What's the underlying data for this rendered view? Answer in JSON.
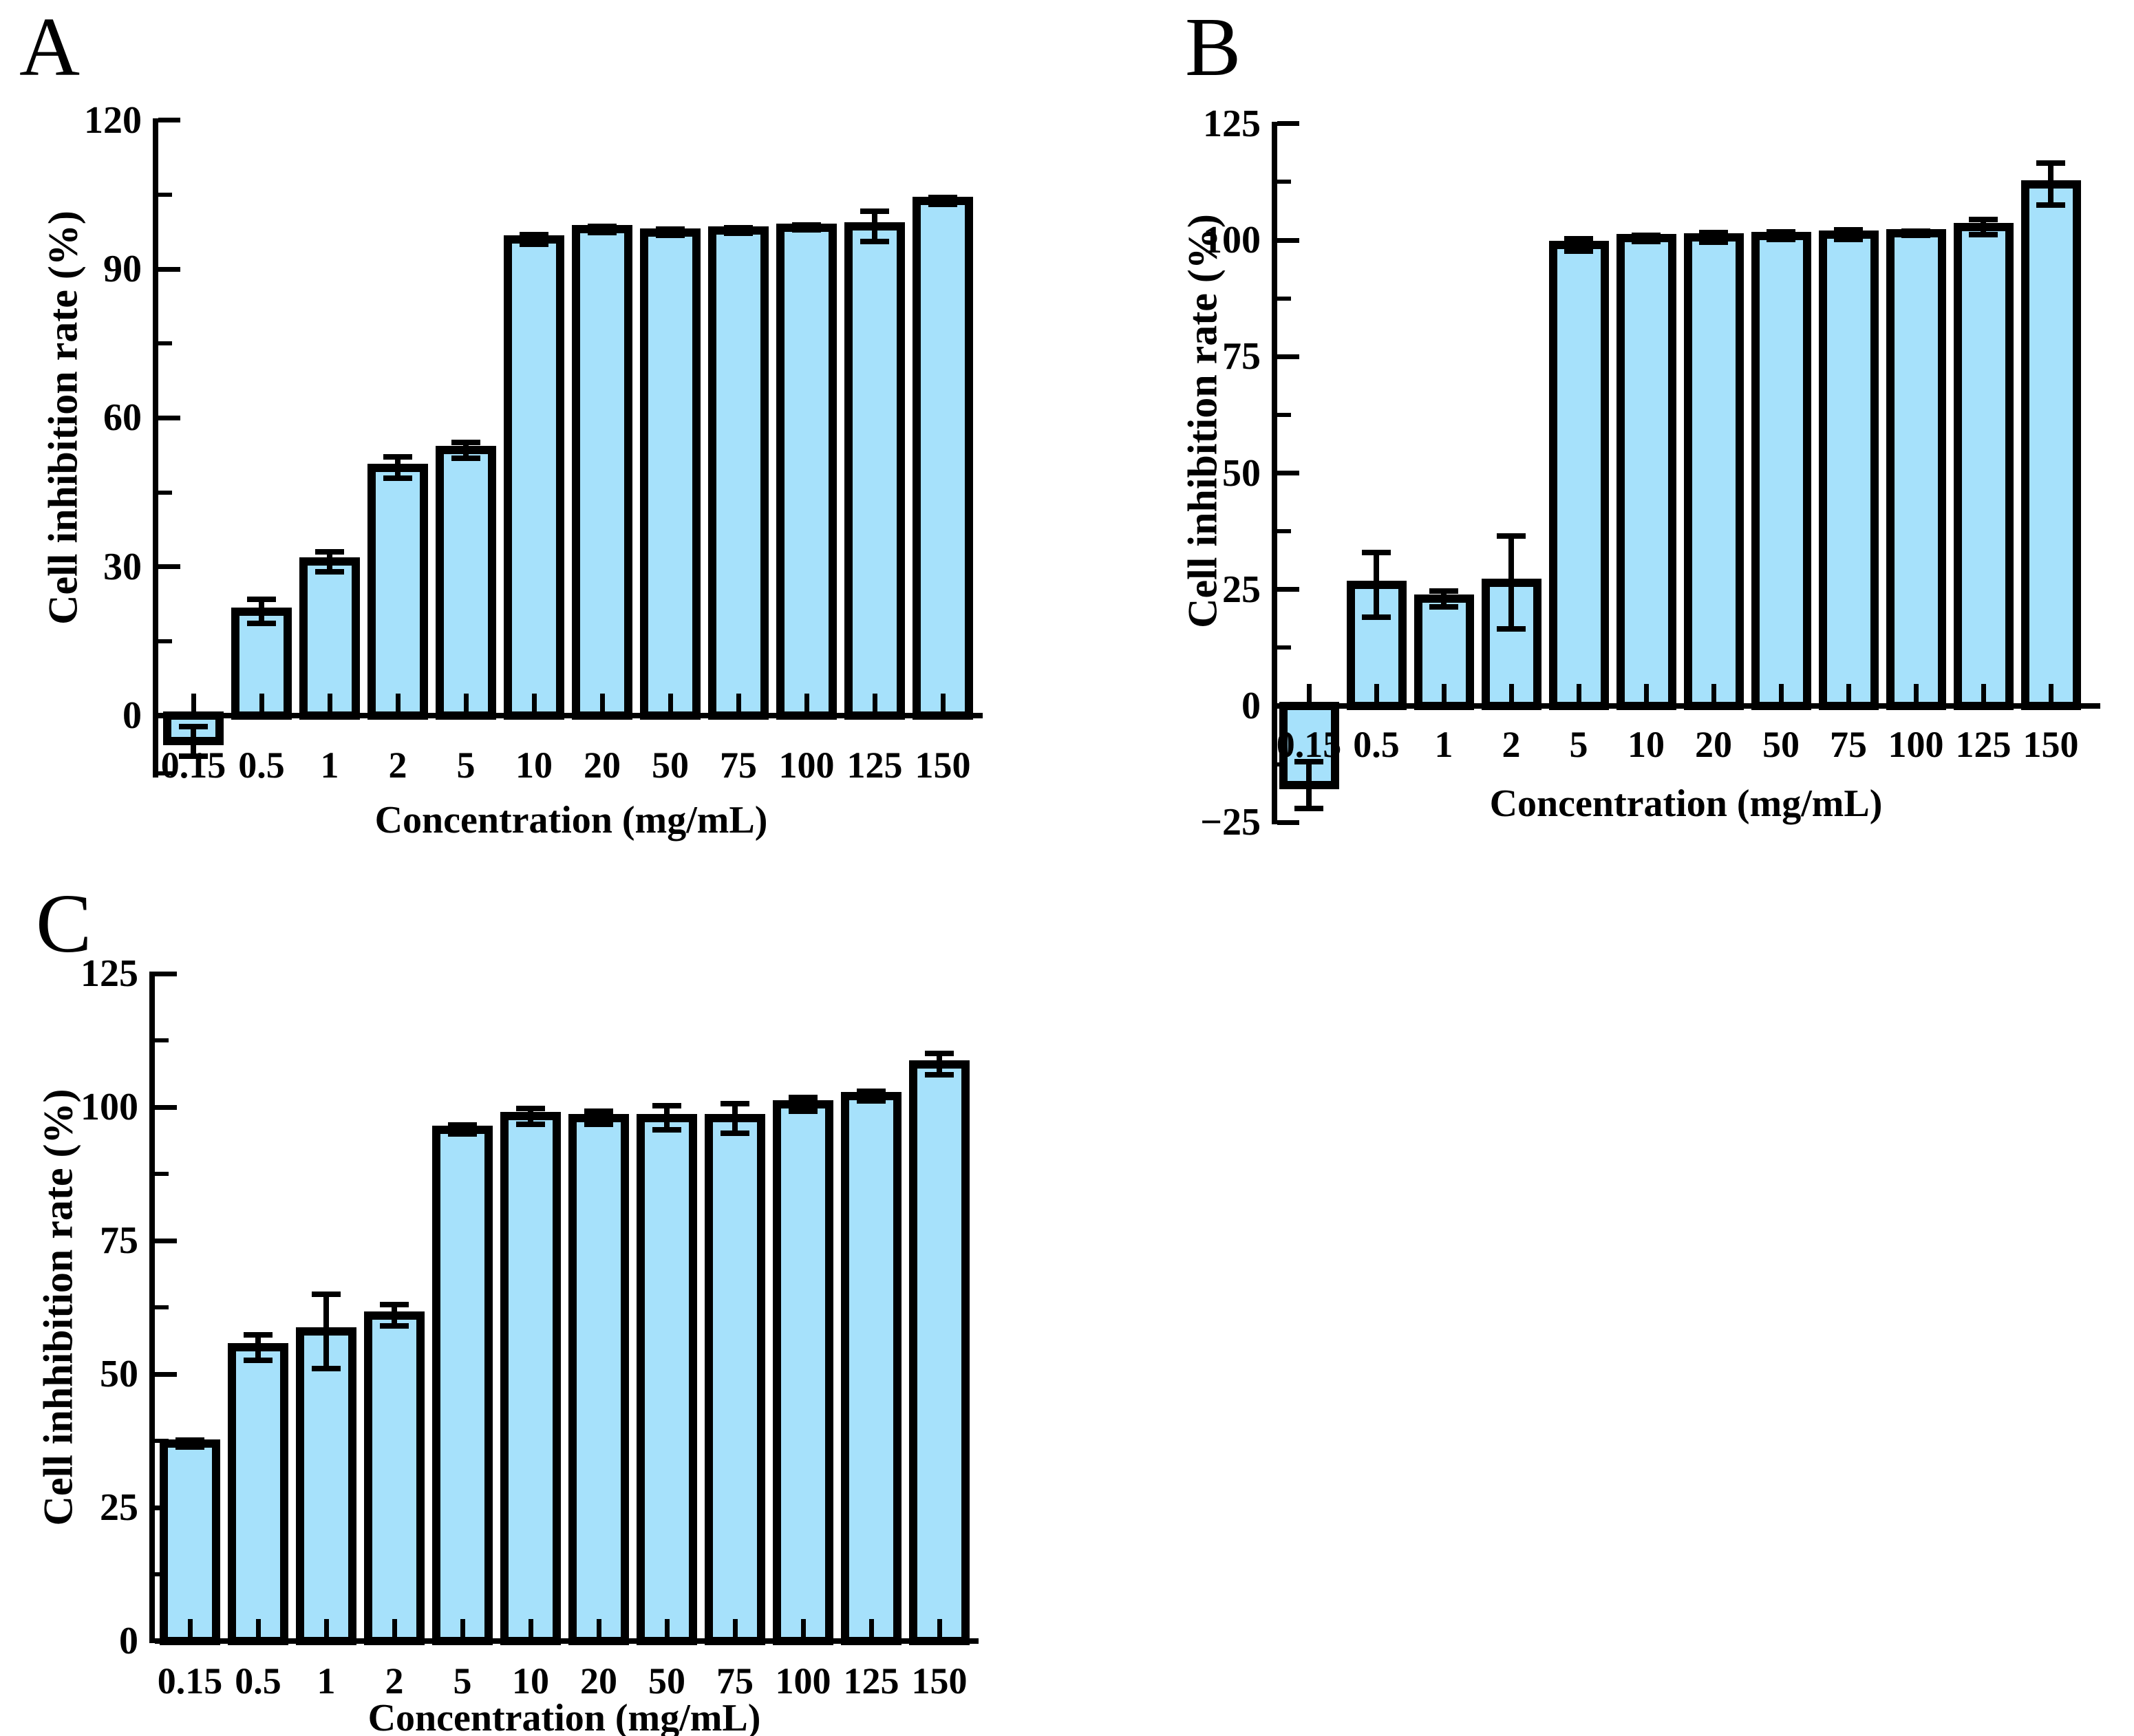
{
  "figure": {
    "background_color": "#ffffff",
    "bar_fill_color": "#a6e1fb",
    "bar_edge_color": "#000000",
    "text_color": "#000000"
  },
  "chart_data": [
    {
      "panel": "A",
      "type": "bar",
      "title": "",
      "xlabel": "Concentration (mg/mL)",
      "ylabel": "Cell inhibition rate (%)",
      "categories": [
        "0.15",
        "0.5",
        "1",
        "2",
        "5",
        "10",
        "20",
        "50",
        "75",
        "100",
        "125",
        "150"
      ],
      "values": [
        -5.2,
        21,
        31,
        50,
        53.5,
        96,
        98,
        97.4,
        97.8,
        98.4,
        98.6,
        103.8
      ],
      "errors": [
        3,
        2.4,
        2,
        2.2,
        1.6,
        1,
        0.6,
        0.6,
        0.6,
        0.5,
        3,
        0.7
      ],
      "yticks": [
        0,
        30,
        60,
        90,
        120
      ],
      "minor_tick_interval": 15,
      "ylim": [
        -12,
        120
      ],
      "grid": false,
      "legend": null
    },
    {
      "panel": "B",
      "type": "bar",
      "title": "",
      "xlabel": "Concentration (mg/mL)",
      "ylabel": "Cell inhibition rate (%)",
      "categories": [
        "0.15",
        "0.5",
        "1",
        "2",
        "5",
        "10",
        "20",
        "50",
        "75",
        "100",
        "125",
        "150"
      ],
      "values": [
        -17,
        26,
        23,
        26.5,
        99,
        100.4,
        100.6,
        100.9,
        101.2,
        101.5,
        102.8,
        112
      ],
      "errors": [
        5,
        7,
        1.7,
        10,
        1.3,
        0.7,
        1,
        0.8,
        1,
        0.4,
        1.6,
        4.5
      ],
      "yticks": [
        -25,
        0,
        25,
        50,
        75,
        100,
        125
      ],
      "minor_tick_interval": 12.5,
      "ylim": [
        -25,
        125
      ],
      "grid": false,
      "legend": null
    },
    {
      "panel": "C",
      "type": "bar",
      "title": "",
      "xlabel": "Concentration (mg/mL)",
      "ylabel": "Cell inhhibition rate (%)",
      "categories": [
        "0.15",
        "0.5",
        "1",
        "2",
        "5",
        "10",
        "20",
        "50",
        "75",
        "100",
        "125",
        "150"
      ],
      "values": [
        37,
        55,
        58,
        61,
        95.8,
        98.3,
        98,
        98,
        97.9,
        100.5,
        102,
        108
      ],
      "errors": [
        0.6,
        2.4,
        7,
        2,
        0.8,
        1.5,
        1.2,
        2.2,
        2.8,
        1.3,
        0.9,
        2
      ],
      "yticks": [
        0,
        25,
        50,
        75,
        100,
        125
      ],
      "minor_tick_interval": 12.5,
      "ylim": [
        0,
        125
      ],
      "grid": false,
      "legend": null
    }
  ]
}
